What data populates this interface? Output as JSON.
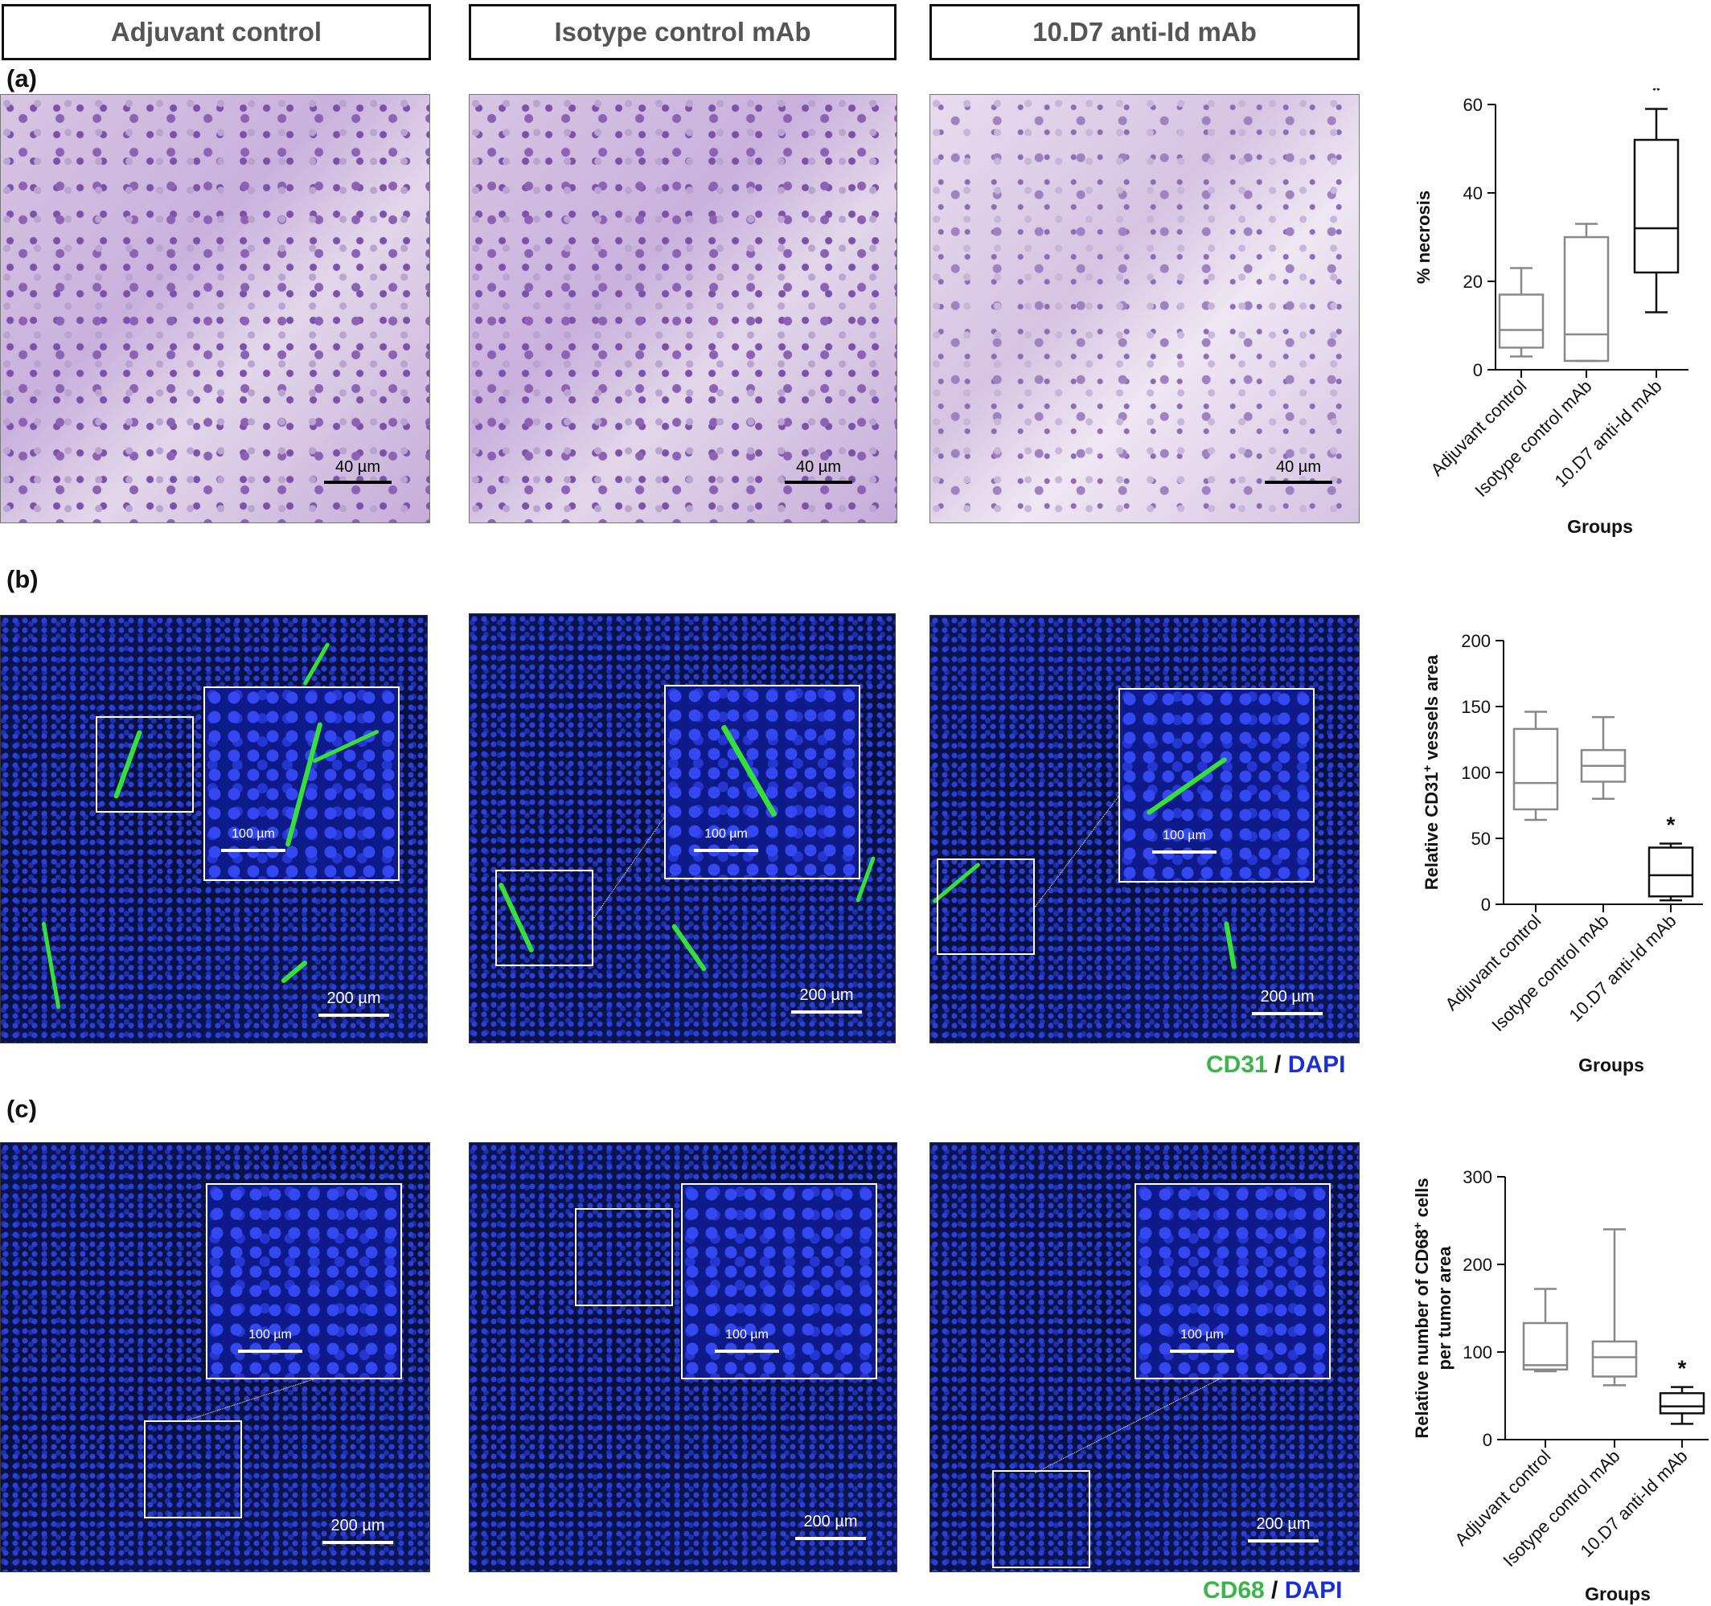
{
  "headers": [
    "Adjuvant control",
    "Isotype control mAb",
    "10.D7 anti-Id mAb"
  ],
  "panel_labels": {
    "a": "(a)",
    "b": "(b)",
    "c": "(c)"
  },
  "scale_bars": {
    "a": "40 µm",
    "b_main": "200 µm",
    "b_inset": "100 µm",
    "c_main": "200 µm",
    "c_inset": "100 µm"
  },
  "legends": {
    "b": {
      "marker": "CD31",
      "sep": "/",
      "stain": "DAPI"
    },
    "c": {
      "marker": "CD68",
      "sep": "/",
      "stain": "DAPI"
    }
  },
  "colors": {
    "marker_green": "#39b54a",
    "dapi_blue": "#1a2fd8",
    "box_gray": "#888888",
    "box_black": "#111111"
  },
  "chart_data": [
    {
      "type": "boxplot",
      "title": "",
      "ylabel": "% necrosis",
      "xlabel": "Groups",
      "ylim": [
        0,
        60
      ],
      "yticks": [
        0,
        20,
        40,
        60
      ],
      "categories": [
        "Adjuvant control",
        "Isotype control mAb",
        "10.D7 anti-Id mAb"
      ],
      "boxes": [
        {
          "min": 3,
          "q1": 5,
          "median": 9,
          "q3": 17,
          "max": 23,
          "sig": ""
        },
        {
          "min": 2,
          "q1": 2,
          "median": 8,
          "q3": 30,
          "max": 33,
          "sig": ""
        },
        {
          "min": 13,
          "q1": 22,
          "median": 32,
          "q3": 52,
          "max": 59,
          "sig": "*"
        }
      ]
    },
    {
      "type": "boxplot",
      "title": "",
      "ylabel": "Relative CD31",
      "ylabel_sup": "+",
      "ylabel_rest": " vessels area",
      "xlabel": "Groups",
      "ylim": [
        0,
        200
      ],
      "yticks": [
        0,
        50,
        100,
        150,
        200
      ],
      "categories": [
        "Adjuvant control",
        "Isotype control mAb",
        "10.D7 anti-Id mAb"
      ],
      "boxes": [
        {
          "min": 64,
          "q1": 72,
          "median": 92,
          "q3": 133,
          "max": 146,
          "sig": ""
        },
        {
          "min": 80,
          "q1": 93,
          "median": 105,
          "q3": 117,
          "max": 142,
          "sig": ""
        },
        {
          "min": 3,
          "q1": 6,
          "median": 22,
          "q3": 43,
          "max": 46,
          "sig": "*"
        }
      ]
    },
    {
      "type": "boxplot",
      "title": "",
      "ylabel": "Relative number of CD68",
      "ylabel_sup": "+",
      "ylabel_rest": " cells",
      "ylabel_line2": "per tumor area",
      "xlabel": "Groups",
      "ylim": [
        0,
        300
      ],
      "yticks": [
        0,
        100,
        200,
        300
      ],
      "categories": [
        "Adjuvant control",
        "Isotype control mAb",
        "10.D7 anti-Id mAb"
      ],
      "boxes": [
        {
          "min": 78,
          "q1": 80,
          "median": 85,
          "q3": 133,
          "max": 172,
          "sig": ""
        },
        {
          "min": 62,
          "q1": 72,
          "median": 94,
          "q3": 112,
          "max": 240,
          "sig": ""
        },
        {
          "min": 18,
          "q1": 30,
          "median": 38,
          "q3": 53,
          "max": 60,
          "sig": "*"
        }
      ]
    }
  ]
}
